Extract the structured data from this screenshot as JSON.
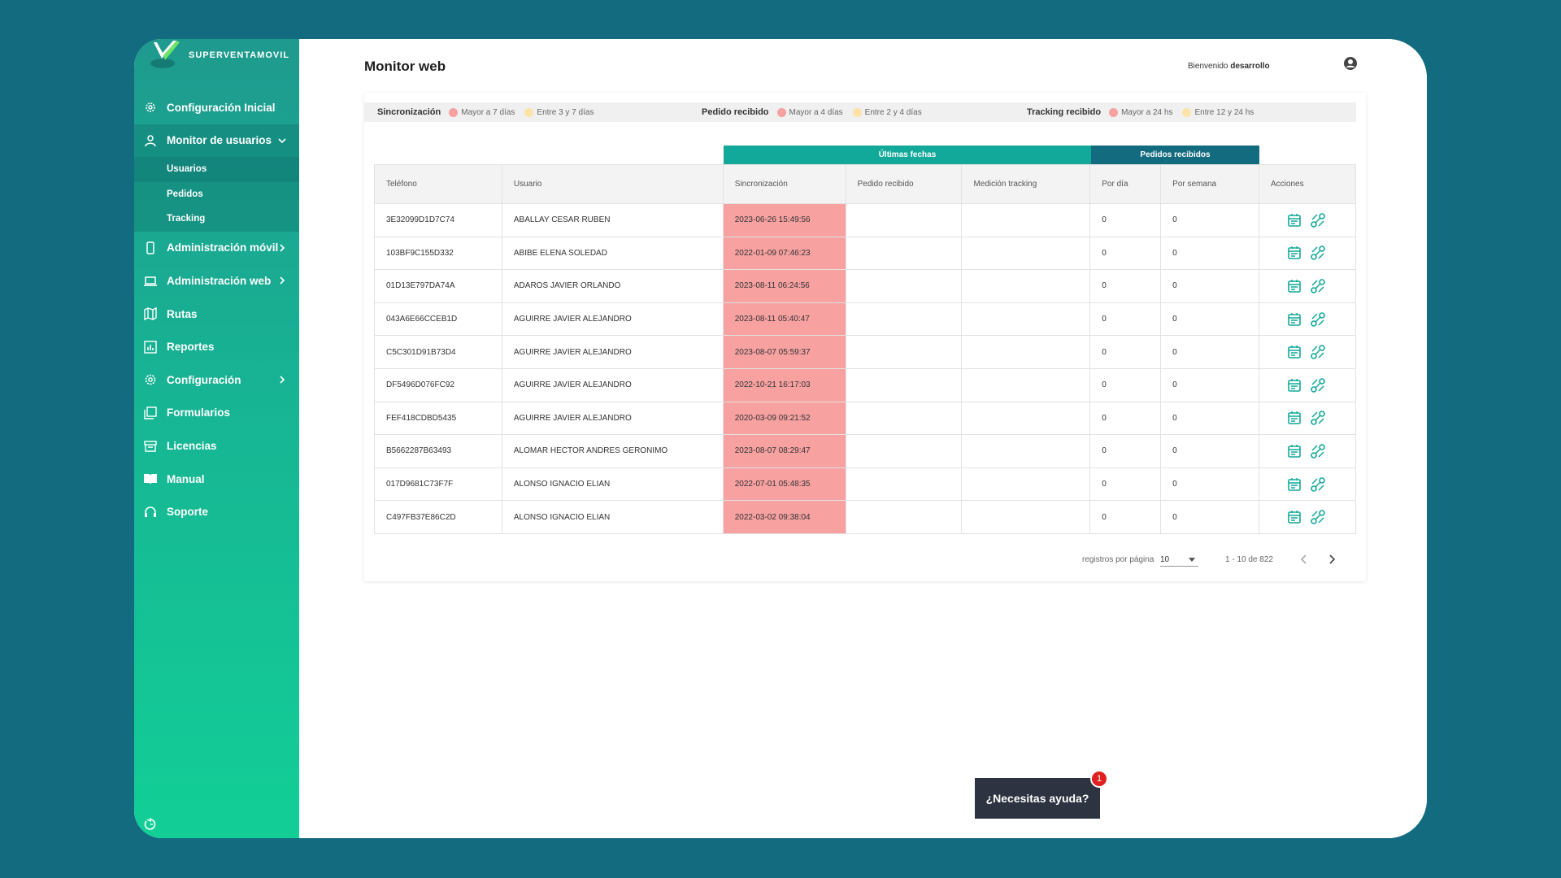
{
  "brand": {
    "name": "SUPERVENTAMOVIL"
  },
  "sidebar": {
    "items": [
      {
        "label": "Configuración Inicial",
        "icon": "gear-cog-icon"
      },
      {
        "label": "Monitor de usuarios",
        "icon": "user-icon",
        "expanded": true,
        "children": [
          {
            "label": "Usuarios",
            "active": true
          },
          {
            "label": "Pedidos"
          },
          {
            "label": "Tracking"
          }
        ]
      },
      {
        "label": "Administración móvil",
        "icon": "mobile-icon",
        "has_arrow": true
      },
      {
        "label": "Administración web",
        "icon": "laptop-icon",
        "has_arrow": true
      },
      {
        "label": "Rutas",
        "icon": "map-icon"
      },
      {
        "label": "Reportes",
        "icon": "chart-icon"
      },
      {
        "label": "Configuración",
        "icon": "gear-icon",
        "has_arrow": true
      },
      {
        "label": "Formularios",
        "icon": "forms-icon"
      },
      {
        "label": "Licencias",
        "icon": "license-icon"
      },
      {
        "label": "Manual",
        "icon": "book-icon"
      },
      {
        "label": "Soporte",
        "icon": "headset-icon"
      }
    ]
  },
  "header": {
    "title": "Monitor web",
    "welcome_prefix": "Bienvenido",
    "username": "desarrollo"
  },
  "legend": {
    "groups": [
      {
        "title": "Sincronización",
        "entries": [
          {
            "label": "Mayor a 7 días",
            "color": "#f7a1a1"
          },
          {
            "label": "Entre 3 y 7 días",
            "color": "#fde3a7"
          }
        ]
      },
      {
        "title": "Pedido recibido",
        "entries": [
          {
            "label": "Mayor a 4 días",
            "color": "#f7a1a1"
          },
          {
            "label": "Entre 2 y 4 días",
            "color": "#fde3a7"
          }
        ]
      },
      {
        "title": "Tracking recibido",
        "entries": [
          {
            "label": "Mayor a 24 hs",
            "color": "#f7a1a1"
          },
          {
            "label": "Entre 12 y 24 hs",
            "color": "#fde3a7"
          }
        ]
      }
    ]
  },
  "bands": {
    "ultimas_fechas": "Últimas fechas",
    "pedidos_recibidos": "Pedidos recibidos"
  },
  "table": {
    "columns": [
      "Teléfono",
      "Usuario",
      "Sincronización",
      "Pedido recibido",
      "Medición tracking",
      "Por día",
      "Por semana",
      "Acciones"
    ],
    "rows": [
      [
        "3E32099D1D7C74",
        "ABALLAY CESAR RUBEN",
        "2023-06-26 15:49:56",
        "",
        "",
        "0",
        "0"
      ],
      [
        "103BF9C155D332",
        "ABIBE ELENA SOLEDAD",
        "2022-01-09 07:46:23",
        "",
        "",
        "0",
        "0"
      ],
      [
        "01D13E797DA74A",
        "ADAROS JAVIER ORLANDO",
        "2023-08-11 06:24:56",
        "",
        "",
        "0",
        "0"
      ],
      [
        "043A6E66CCEB1D",
        "AGUIRRE JAVIER ALEJANDRO",
        "2023-08-11 05:40:47",
        "",
        "",
        "0",
        "0"
      ],
      [
        "C5C301D91B73D4",
        "AGUIRRE JAVIER ALEJANDRO",
        "2023-08-07 05:59:37",
        "",
        "",
        "0",
        "0"
      ],
      [
        "DF5496D076FC92",
        "AGUIRRE JAVIER ALEJANDRO",
        "2022-10-21 16:17:03",
        "",
        "",
        "0",
        "0"
      ],
      [
        "FEF418CDBD5435",
        "AGUIRRE JAVIER ALEJANDRO",
        "2020-03-09 09:21:52",
        "",
        "",
        "0",
        "0"
      ],
      [
        "B5662287B63493",
        "ALOMAR HECTOR ANDRES GERONIMO",
        "2023-08-07 08:29:47",
        "",
        "",
        "0",
        "0"
      ],
      [
        "017D9681C73F7F",
        "ALONSO IGNACIO ELIAN",
        "2022-07-01 05:48:35",
        "",
        "",
        "0",
        "0"
      ],
      [
        "C497FB37E86C2D",
        "ALONSO IGNACIO ELIAN",
        "2022-03-02 09:38:04",
        "",
        "",
        "0",
        "0"
      ]
    ]
  },
  "pagination": {
    "rows_per_page_label": "registros por página",
    "rows_per_page": "10",
    "range": "1 - 10 de 822"
  },
  "help": {
    "label": "¿Necesitas ayuda?",
    "badge": "1"
  },
  "colors": {
    "accent": "#13a99a",
    "dark_band": "#136b7f",
    "sync_alert": "#f7a1a1",
    "warn": "#fde3a7"
  }
}
